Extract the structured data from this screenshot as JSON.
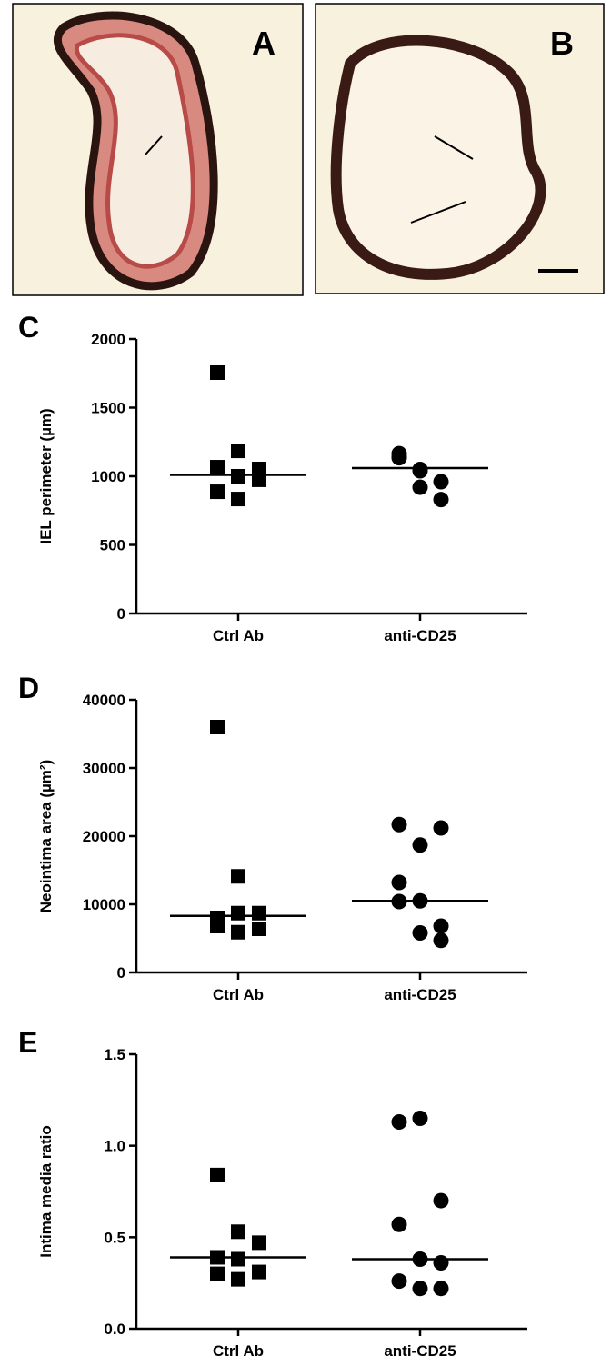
{
  "images": [
    {
      "label": "A"
    },
    {
      "label": "B"
    }
  ],
  "chart_data": [
    {
      "type": "dotplot",
      "label": "C",
      "ylabel": "IEL perimeter (µm)",
      "categories": [
        "Ctrl Ab",
        "anti-CD25"
      ],
      "groups": [
        {
          "marker": "square",
          "values": [
            1755,
            1185,
            1053,
            1066,
            1000,
            974,
            887,
            834
          ],
          "median": 1010
        },
        {
          "marker": "circle",
          "values": [
            1135,
            1050,
            960,
            1165,
            1040,
            830,
            1140,
            920
          ],
          "median": 1060
        }
      ],
      "ylim": [
        0,
        2000
      ],
      "yticks": [
        0,
        500,
        1000,
        1500,
        2000
      ]
    },
    {
      "type": "dotplot",
      "label": "D",
      "ylabel": "Neointima area (µm²)",
      "categories": [
        "Ctrl Ab",
        "anti-CD25"
      ],
      "groups": [
        {
          "marker": "square",
          "values": [
            36000,
            14100,
            8700,
            6800,
            5900,
            6400,
            8000,
            8700
          ],
          "median": 8300
        },
        {
          "marker": "circle",
          "values": [
            21700,
            18700,
            21200,
            13200,
            10500,
            6800,
            10400,
            5800,
            4700
          ],
          "median": 10500
        }
      ],
      "ylim": [
        0,
        40000
      ],
      "yticks": [
        0,
        10000,
        20000,
        30000,
        40000
      ]
    },
    {
      "type": "dotplot",
      "label": "E",
      "ylabel": "Intima media ratio",
      "categories": [
        "Ctrl Ab",
        "anti-CD25"
      ],
      "groups": [
        {
          "marker": "square",
          "values": [
            0.84,
            0.53,
            0.47,
            0.39,
            0.38,
            0.31,
            0.3,
            0.27
          ],
          "median": 0.39
        },
        {
          "marker": "circle",
          "values": [
            1.13,
            1.15,
            0.7,
            0.57,
            0.38,
            0.36,
            0.26,
            0.22,
            0.22
          ],
          "median": 0.38
        }
      ],
      "ylim": [
        0,
        1.5
      ],
      "yticks": [
        {
          "value": 0,
          "label": "0.0"
        },
        0.5,
        {
          "value": 1,
          "label": "1.0"
        },
        1.5
      ]
    }
  ]
}
